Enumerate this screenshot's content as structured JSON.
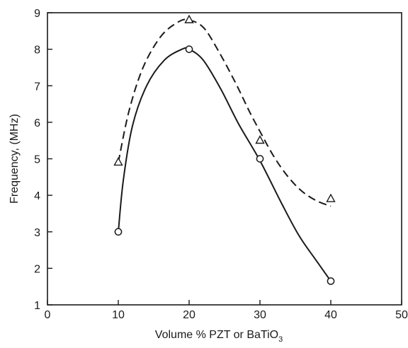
{
  "chart_data": {
    "type": "line",
    "title": "",
    "xlabel": {
      "main": "Volume % PZT or BaTiO",
      "subscript": "3"
    },
    "ylabel": "Frequency, (MHz)",
    "xlim": [
      0,
      50
    ],
    "ylim": [
      1,
      9
    ],
    "x_ticks": [
      "0",
      "10",
      "20",
      "30",
      "40",
      "50"
    ],
    "y_ticks": [
      "1",
      "2",
      "3",
      "4",
      "5",
      "6",
      "7",
      "8",
      "9"
    ],
    "grid": false,
    "legend": "none",
    "series": [
      {
        "marker": "triangle",
        "line_style": "dashed",
        "color": "#1a1a1a",
        "points": [
          [
            10,
            4.9
          ],
          [
            20,
            8.8
          ],
          [
            30,
            5.5
          ],
          [
            40,
            3.9
          ]
        ],
        "curve": [
          [
            10,
            4.9
          ],
          [
            11.5,
            6.3
          ],
          [
            13.5,
            7.5
          ],
          [
            16,
            8.35
          ],
          [
            18.5,
            8.75
          ],
          [
            20,
            8.8
          ],
          [
            22,
            8.6
          ],
          [
            24,
            8.0
          ],
          [
            26.5,
            7.1
          ],
          [
            28.5,
            6.3
          ],
          [
            30,
            5.75
          ],
          [
            32,
            5.05
          ],
          [
            34,
            4.5
          ],
          [
            36,
            4.1
          ],
          [
            38,
            3.85
          ],
          [
            40,
            3.7
          ]
        ]
      },
      {
        "marker": "circle",
        "line_style": "solid",
        "color": "#1a1a1a",
        "points": [
          [
            10,
            3.0
          ],
          [
            20,
            8.0
          ],
          [
            30,
            5.0
          ],
          [
            40,
            1.65
          ]
        ],
        "curve": [
          [
            10,
            3.0
          ],
          [
            10.7,
            4.4
          ],
          [
            12,
            5.9
          ],
          [
            14,
            7.0
          ],
          [
            16.5,
            7.7
          ],
          [
            19,
            8.0
          ],
          [
            20,
            8.0
          ],
          [
            22,
            7.7
          ],
          [
            24.5,
            6.9
          ],
          [
            27,
            5.95
          ],
          [
            30,
            4.95
          ],
          [
            33,
            3.8
          ],
          [
            35.5,
            2.9
          ],
          [
            38,
            2.2
          ],
          [
            40,
            1.65
          ]
        ]
      }
    ]
  }
}
